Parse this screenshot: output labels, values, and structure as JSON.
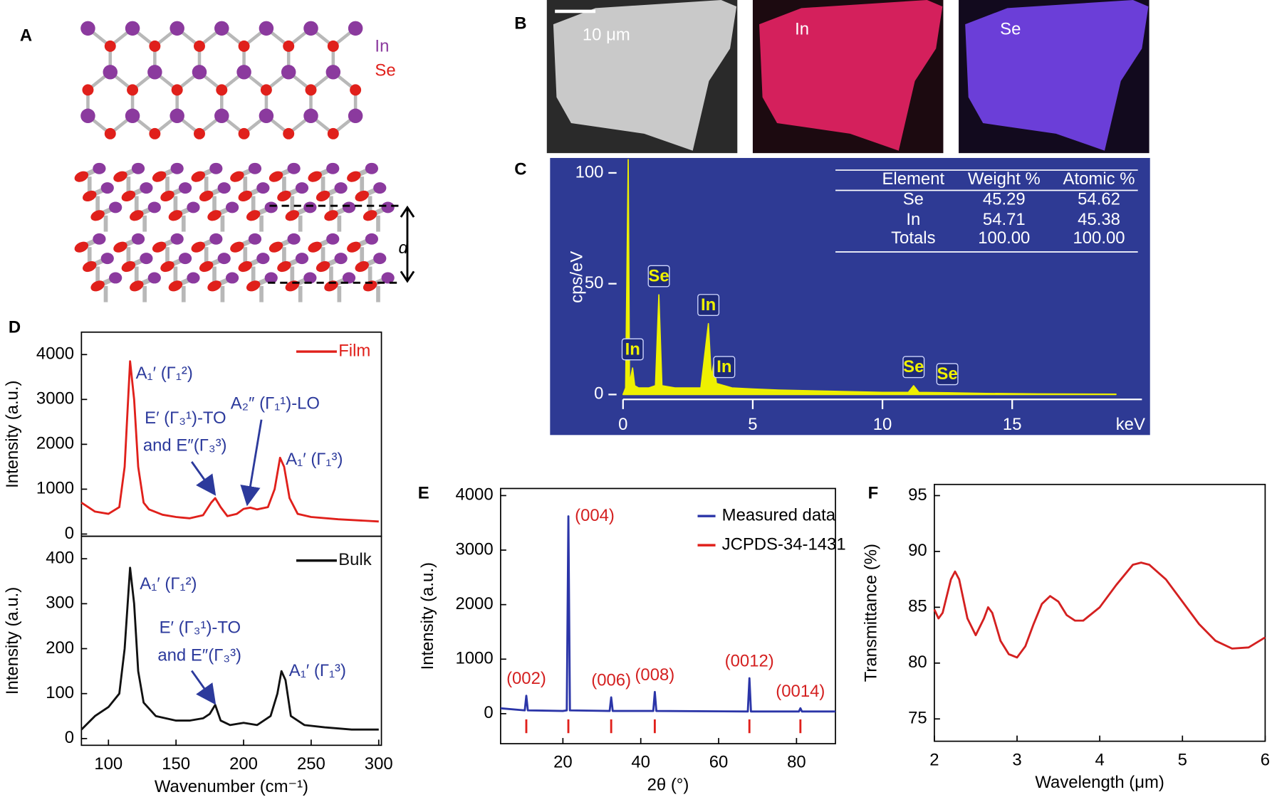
{
  "panel_labels": [
    "A",
    "B",
    "C",
    "D",
    "E",
    "F"
  ],
  "structure": {
    "legend": [
      "In",
      "Se"
    ],
    "spacing_label": "d"
  },
  "micrographs": {
    "scale_bar": "10 μm",
    "maps": [
      "In",
      "Se"
    ]
  },
  "chart_data": [
    {
      "type": "area",
      "ylabel": "cps/eV",
      "xlabel": "keV",
      "color": "#eef000",
      "xlim": [
        0,
        20
      ],
      "ylim": [
        0,
        106
      ],
      "xticks": [
        0,
        5,
        10,
        15
      ],
      "yticks": [
        0,
        50,
        100
      ],
      "x": [
        0,
        0.1,
        0.2,
        0.25,
        0.3,
        0.37,
        0.45,
        0.6,
        1.0,
        1.25,
        1.38,
        1.5,
        2.0,
        3.0,
        3.29,
        3.4,
        3.5,
        3.6,
        3.9,
        4.2,
        5,
        6,
        8,
        10,
        11.0,
        11.2,
        11.4,
        12.5,
        14,
        16,
        19
      ],
      "values": [
        0,
        3,
        106,
        5,
        8,
        12,
        4,
        3,
        3,
        4,
        45,
        4,
        3,
        3,
        32,
        8,
        14,
        5,
        4,
        3,
        2.5,
        2,
        1.5,
        1,
        1,
        4,
        1,
        0.8,
        0.5,
        0.3,
        0.2
      ],
      "peak_labels": [
        {
          "text": "In",
          "x": 0.37
        },
        {
          "text": "Se",
          "x": 1.38
        },
        {
          "text": "In",
          "x": 3.29
        },
        {
          "text": "In",
          "x": 3.9
        },
        {
          "text": "Se",
          "x": 11.2
        },
        {
          "text": "Se",
          "x": 12.5
        }
      ],
      "table": {
        "columns": [
          "Element",
          "Weight %",
          "Atomic %"
        ],
        "rows": [
          [
            "Se",
            "45.29",
            "54.62"
          ],
          [
            "In",
            "54.71",
            "45.38"
          ],
          [
            "Totals",
            "100.00",
            "100.00"
          ]
        ]
      }
    },
    {
      "type": "line",
      "ylabel": "Intensity (a.u.)",
      "legend": "upper right",
      "xlim": [
        80,
        302
      ],
      "ylim": [
        -50,
        4500
      ],
      "yticks": [
        0,
        1000,
        2000,
        3000,
        4000
      ],
      "series": [
        {
          "name": "Film",
          "color": "#e0201b",
          "x": [
            80,
            90,
            100,
            108,
            112,
            116,
            119,
            122,
            126,
            130,
            140,
            150,
            160,
            170,
            176,
            179,
            183,
            188,
            195,
            200,
            205,
            210,
            218,
            223,
            227,
            230,
            234,
            240,
            250,
            270,
            300
          ],
          "values": [
            700,
            500,
            450,
            600,
            1500,
            3850,
            3000,
            1500,
            700,
            550,
            430,
            380,
            350,
            420,
            700,
            800,
            600,
            400,
            450,
            560,
            590,
            550,
            600,
            1000,
            1700,
            1500,
            800,
            450,
            380,
            330,
            280
          ]
        }
      ],
      "annotations": [
        "A₁′ (Γ₁²)",
        "E′ (Γ₃¹)-TO",
        "and E″(Γ₃³)",
        "A₂″ (Γ₁¹)-LO",
        "A₁′ (Γ₁³)"
      ]
    },
    {
      "type": "line",
      "ylabel": "Intensity (a.u.)",
      "xlabel": "Wavenumber (cm⁻¹)",
      "legend": "upper right",
      "xlim": [
        80,
        302
      ],
      "ylim": [
        -15,
        450
      ],
      "xticks": [
        100,
        150,
        200,
        250,
        300
      ],
      "yticks": [
        0,
        100,
        200,
        300,
        400
      ],
      "series": [
        {
          "name": "Bulk",
          "color": "#111111",
          "x": [
            80,
            90,
            100,
            108,
            112,
            116,
            119,
            122,
            126,
            135,
            150,
            160,
            170,
            175,
            179,
            183,
            190,
            200,
            210,
            220,
            225,
            228,
            231,
            235,
            245,
            260,
            280,
            300
          ],
          "values": [
            20,
            50,
            70,
            100,
            200,
            380,
            300,
            150,
            80,
            50,
            40,
            40,
            45,
            55,
            75,
            40,
            30,
            35,
            30,
            50,
            100,
            150,
            130,
            50,
            30,
            25,
            20,
            20
          ]
        }
      ],
      "annotations": [
        "A₁′ (Γ₁²)",
        "E′ (Γ₃¹)-TO",
        "and E″(Γ₃³)",
        "A₁′ (Γ₁³)"
      ]
    },
    {
      "type": "line",
      "ylabel": "Intensity (a.u.)",
      "xlabel": "2θ (°)",
      "legend": "upper right",
      "xlim": [
        4,
        90
      ],
      "ylim": [
        -550,
        4130
      ],
      "xticks": [
        20,
        40,
        60,
        80
      ],
      "yticks": [
        0,
        1000,
        2000,
        3000,
        4000
      ],
      "series": [
        {
          "name": "Measured data",
          "color": "#2b35a8",
          "x": [
            4,
            10.2,
            10.6,
            11.0,
            20,
            21.0,
            21.4,
            21.8,
            32.0,
            32.4,
            32.8,
            43.2,
            43.6,
            44.0,
            67.5,
            67.9,
            68.3,
            80.6,
            81.0,
            81.4,
            90
          ],
          "values": [
            100,
            60,
            330,
            60,
            50,
            60,
            3620,
            60,
            50,
            300,
            50,
            50,
            400,
            50,
            40,
            650,
            40,
            40,
            100,
            40,
            40
          ]
        },
        {
          "name": "JCPDS-34-1431",
          "color": "#e0201b",
          "x": [
            10.6,
            21.4,
            32.4,
            43.6,
            67.9,
            81.0
          ]
        }
      ],
      "peak_labels": [
        {
          "text": "(002)",
          "x": 10.6
        },
        {
          "text": "(004)",
          "x": 21.4
        },
        {
          "text": "(006)",
          "x": 32.4
        },
        {
          "text": "(008)",
          "x": 43.6
        },
        {
          "text": "(0012)",
          "x": 67.9
        },
        {
          "text": "(0014)",
          "x": 81.0
        }
      ]
    },
    {
      "type": "line",
      "ylabel": "Transmittance (%)",
      "xlabel": "Wavelength (μm)",
      "color": "#d42020",
      "xlim": [
        2,
        6
      ],
      "ylim": [
        73,
        96
      ],
      "xticks": [
        2,
        3,
        4,
        5,
        6
      ],
      "yticks": [
        75,
        80,
        85,
        90,
        95
      ],
      "x": [
        2,
        2.05,
        2.1,
        2.2,
        2.25,
        2.3,
        2.4,
        2.5,
        2.6,
        2.65,
        2.7,
        2.8,
        2.9,
        3.0,
        3.1,
        3.2,
        3.3,
        3.4,
        3.5,
        3.6,
        3.7,
        3.8,
        4.0,
        4.2,
        4.4,
        4.5,
        4.6,
        4.8,
        5.0,
        5.2,
        5.4,
        5.6,
        5.8,
        6.0
      ],
      "values": [
        84.8,
        84,
        84.5,
        87.5,
        88.2,
        87.5,
        84,
        82.5,
        84,
        85,
        84.5,
        82,
        80.8,
        80.5,
        81.5,
        83.5,
        85.3,
        86,
        85.5,
        84.3,
        83.8,
        83.8,
        85,
        87,
        88.8,
        89,
        88.8,
        87.5,
        85.5,
        83.5,
        82,
        81.3,
        81.4,
        82.3
      ]
    }
  ]
}
